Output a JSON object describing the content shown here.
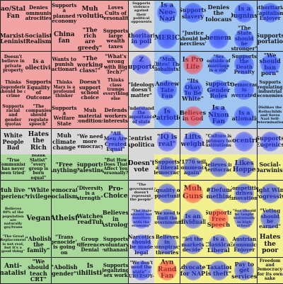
{
  "board": {
    "colors": {
      "authleft": "#f2a3a3",
      "authright": "#9fc5f0",
      "libleft": "#a8d99a",
      "libright": "#f2f08f",
      "center": "#d9d9d9",
      "mark_blue": "#2f46ff",
      "mark_red": "#ff4444"
    },
    "rows": [
      [
        "Mao/Stalin Fan",
        "Denies communist atrocities",
        "Supports a planned economy",
        "Muh revolution",
        "Loves Cults of Personality",
        "Supports violence against their political opponents",
        "Is a Neo-Nazi",
        "Supports slavery",
        "Denies the Holocaust",
        "Is a Dugninst",
        "Authoritarian Capitalism Enjoyer"
      ],
      [
        "Marxist-Leninist",
        "Socialist Realism",
        "China fan",
        "\"The rich are greedy\"",
        "Supports large wealth taxes",
        "Authoritarian in poll",
        "((AMERICA))",
        "\"Justice should be merciless\"",
        "(((thememe)))",
        "\"The State should be stronger\"",
        "Supports deportations"
      ],
      [
        "Doesn't believe in private property",
        "Is a Collectivist",
        "Wants to punish reactionaries",
        "\"The working class!\"",
        "\"What's wrong with Big Tech?\"",
        "Z Supporter",
        "\"Muh Elites! The Globalists!\"",
        "Is Pro Life",
        "\"Sex outside of marriage is a sin\"",
        "Supports the Death Penalty",
        "\"We should ban porn\""
      ],
      [
        "Thinks misgendering should be a crime",
        "Supports Equality of Outcome",
        "Thinks Marx is a profound thinker",
        "Doesn't support school choice",
        "Thinks class trumps everything else",
        "\"Ideology doesn't matter\"",
        "Andrew Tate Fan",
        "\"Its Okay To Be White\"",
        "Supports Gender Roles",
        "\"Democracy is overrated\"",
        "Supports regulating industrial economies"
      ],
      [
        "Supports racial and gender quotas",
        "\"The companies should regulate speech\"",
        "Supports a Welfare State",
        "Muh material conditions",
        "Defends workers interests",
        "Understands the importance of state",
        "Is Patriotic",
        "Believes in God",
        "Is a Nixon Fan",
        "Is a Nationalist",
        "Dislikes the Rothschilds and Soros Nazi Self-Determination"
      ],
      [
        "White People Bad",
        "Hates the Rich",
        "Muh climate change",
        "\"We need more Democracy\"",
        "\"All Men Are Created Equal\"",
        "Centrist / Apolitical",
        "\"IQ is real\"",
        "Lifts weight",
        "\"Culture is primary to institutions\"",
        "Biocentrist",
        "Supports Eugenics"
      ],
      [
        "\"True Communism has never been tried\"",
        "Blank Slatist\" \"every group is born equal\"",
        "\"Free [Anything]\"",
        "Supports Palestine",
        "\"But How Does That Affect You Personally?\"",
        "Doesn't vote",
        "Supports a liberal democracy",
        "\"1776 will commence again\"",
        "Believes in Meritocracy",
        "Likes Hoppe",
        "Social-Darwinist"
      ],
      [
        "Muh lived experiences",
        "\"White Privilege\"",
        "\"Democratic Socialism\"",
        "\"Diversity is a strength\"",
        "Pro-Choice",
        "\"The government doesn't represent the people\"",
        "Equality of Opportunity",
        "Muh Guns",
        "\"#Defund Something!\"",
        "\"Competition drives innovation\"",
        "Right Wing Progressive"
      ],
      [
        "Believes 40% of the population are naturally gay/trans",
        "Vegan",
        "Atheist",
        "Watches BreadTube",
        "Believes in Astrology",
        "\"The state should not interfere with the economy\"",
        "\"We need to limit the government\"",
        "Is an Individualist",
        "Supports Free Speech",
        "\"Sex should be taught universally in high school\"",
        "\"Voting should be earned\""
      ],
      [
        "\"The Great Replacement is not real, but it's a good thing\"",
        "\"Abolish the family\"",
        "\"Trans genocide\" is going on",
        "Group Differences Denial",
        "Supports voluntary euthanasia",
        "Narcotics should be made legal",
        "Believes in conspiracy theories",
        "\"let the markets decide\"",
        "Is a Classical Liberal",
        "Austrian Economics Enjoyer",
        "Hates the poor"
      ],
      [
        "Anti-natalist",
        "\"We should teach CRT\"",
        "\"Abolish gender\"",
        "Is nihilistic",
        "Supports legalizing sex work",
        "\"We don't need the state\" -UBERSOY-",
        "Ayn Rand Fan",
        "Advocates for NAP",
        "\"Taxation is theft\"",
        "Pay to get services",
        "Freedom and Democracy-for its own sake"
      ]
    ],
    "marked": [
      [
        0,
        6
      ],
      [
        0,
        7
      ],
      [
        0,
        9
      ],
      [
        0,
        10
      ],
      [
        1,
        5
      ],
      [
        1,
        6
      ],
      [
        1,
        8
      ],
      [
        1,
        9
      ],
      [
        2,
        5
      ],
      [
        2,
        6
      ],
      [
        2,
        7
      ],
      [
        2,
        8
      ],
      [
        2,
        9
      ],
      [
        2,
        10
      ],
      [
        3,
        6
      ],
      [
        3,
        7
      ],
      [
        3,
        8
      ],
      [
        3,
        9
      ],
      [
        4,
        5
      ],
      [
        4,
        6
      ],
      [
        4,
        7
      ],
      [
        4,
        8
      ],
      [
        4,
        9
      ],
      [
        5,
        4
      ],
      [
        5,
        6
      ],
      [
        5,
        7
      ],
      [
        5,
        8
      ],
      [
        5,
        9
      ],
      [
        5,
        10
      ],
      [
        6,
        6
      ],
      [
        6,
        7
      ],
      [
        6,
        8
      ],
      [
        6,
        9
      ],
      [
        7,
        6
      ],
      [
        7,
        7
      ],
      [
        7,
        8
      ],
      [
        7,
        9
      ],
      [
        7,
        10
      ],
      [
        8,
        5
      ],
      [
        8,
        6
      ],
      [
        8,
        7
      ],
      [
        8,
        8
      ],
      [
        8,
        9
      ],
      [
        8,
        10
      ],
      [
        9,
        5
      ],
      [
        9,
        6
      ],
      [
        9,
        7
      ],
      [
        9,
        8
      ],
      [
        9,
        9
      ],
      [
        10,
        5
      ],
      [
        10,
        6
      ],
      [
        10,
        7
      ],
      [
        10,
        8
      ],
      [
        10,
        9
      ]
    ],
    "red_marks": [
      [
        2,
        7
      ],
      [
        4,
        7
      ],
      [
        7,
        7
      ],
      [
        8,
        8
      ],
      [
        10,
        6
      ]
    ]
  }
}
